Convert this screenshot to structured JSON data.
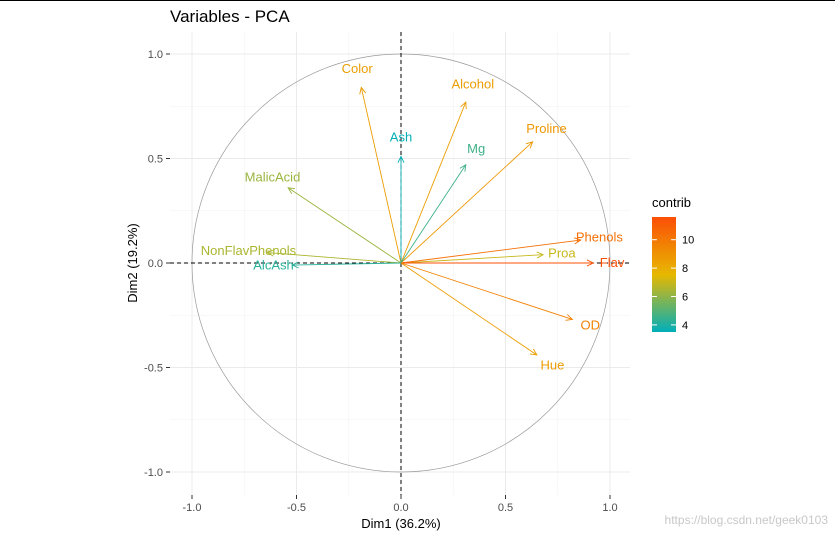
{
  "chart_data": {
    "type": "scatter",
    "subtype": "pca-variable-correlation-circle",
    "title": "Variables - PCA",
    "xlabel": "Dim1 (36.2%)",
    "ylabel": "Dim2 (19.2%)",
    "xlim": [
      -1.0,
      1.0
    ],
    "ylim": [
      -1.0,
      1.0
    ],
    "xticks": [
      -1.0,
      -0.5,
      0.0,
      0.5,
      1.0
    ],
    "yticks": [
      -1.0,
      -0.5,
      0.0,
      0.5,
      1.0
    ],
    "xtick_labels": [
      "-1.0",
      "-0.5",
      "0.0",
      "0.5",
      "1.0"
    ],
    "ytick_labels": [
      "-1.0",
      "-0.5",
      "0.0",
      "0.5",
      "1.0"
    ],
    "grid": true,
    "unit_circle": true,
    "legend": {
      "title": "contrib",
      "position": "right",
      "type": "gradient",
      "range": [
        3.5,
        11.6
      ],
      "ticks": [
        4,
        6,
        8,
        10
      ],
      "tick_labels": [
        "4",
        "6",
        "8",
        "10"
      ],
      "colors": [
        "#00AFBB",
        "#E7B800",
        "#FC4E07"
      ]
    },
    "series": [
      {
        "name": "Color",
        "x": -0.19,
        "y": 0.84,
        "contrib": 8.6
      },
      {
        "name": "Alcohol",
        "x": 0.31,
        "y": 0.77,
        "contrib": 8.6
      },
      {
        "name": "Proline",
        "x": 0.63,
        "y": 0.58,
        "contrib": 8.8
      },
      {
        "name": "Ash",
        "x": 0.0,
        "y": 0.51,
        "contrib": 3.6
      },
      {
        "name": "Mg",
        "x": 0.31,
        "y": 0.47,
        "contrib": 4.6
      },
      {
        "name": "MalicAcid",
        "x": -0.54,
        "y": 0.36,
        "contrib": 6.2
      },
      {
        "name": "NonFlavPhenols",
        "x": -0.64,
        "y": 0.05,
        "contrib": 6.5
      },
      {
        "name": "AlcAsh",
        "x": -0.52,
        "y": -0.01,
        "contrib": 4.2
      },
      {
        "name": "Proa",
        "x": 0.68,
        "y": 0.04,
        "contrib": 7.0
      },
      {
        "name": "Phenols",
        "x": 0.86,
        "y": 0.11,
        "contrib": 10.3
      },
      {
        "name": "Flav",
        "x": 0.92,
        "y": 0.0,
        "contrib": 11.5
      },
      {
        "name": "OD",
        "x": 0.82,
        "y": -0.27,
        "contrib": 9.6
      },
      {
        "name": "Hue",
        "x": 0.65,
        "y": -0.44,
        "contrib": 8.6
      }
    ]
  },
  "watermark": "https://blog.csdn.net/geek0103"
}
